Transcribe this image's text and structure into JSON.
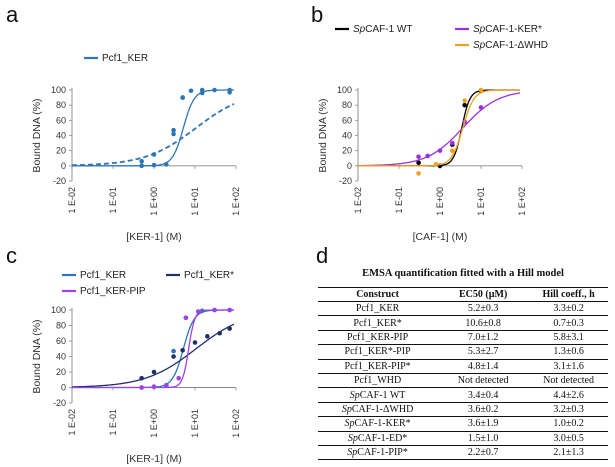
{
  "panels": {
    "a": "a",
    "b": "b",
    "c": "c",
    "d": "d"
  },
  "chart_data": [
    {
      "id": "a",
      "type": "scatter",
      "xscale": "log",
      "xlim_exp": [
        -2,
        2
      ],
      "ylim": [
        -20,
        100
      ],
      "yticks": [
        -20,
        0,
        20,
        40,
        60,
        80,
        100
      ],
      "xtick_labels": [
        "1 E-02",
        "1 E-01",
        "1 E+00",
        "1 E+01",
        "1 E+02"
      ],
      "xlabel": "[KER-1] (M)",
      "ylabel": "Bound DNA (%)",
      "legend": [
        "Pcf1_KER"
      ],
      "series": [
        {
          "name": "Pcf1_KER",
          "color": "#2e75b6",
          "fit": {
            "ec50": 5.2,
            "h": 3.3
          },
          "points": [
            [
              0.5,
              0
            ],
            [
              1,
              1
            ],
            [
              2,
              2
            ],
            [
              3,
              47
            ],
            [
              5,
              90
            ],
            [
              8,
              99
            ],
            [
              15,
              100
            ],
            [
              30,
              100
            ],
            [
              70,
              100
            ]
          ]
        },
        {
          "name": "",
          "color": "#2e75b6",
          "dashed": true,
          "fit": {
            "ec50": 10.6,
            "h": 0.7
          },
          "points": [
            [
              0.5,
              6
            ],
            [
              1,
              15
            ],
            [
              3,
              42
            ],
            [
              5,
              90
            ],
            [
              15,
              96
            ],
            [
              70,
              97
            ]
          ]
        }
      ]
    },
    {
      "id": "b",
      "type": "scatter",
      "xscale": "log",
      "xlim_exp": [
        -2,
        2
      ],
      "ylim": [
        -20,
        100
      ],
      "yticks": [
        -20,
        0,
        20,
        40,
        60,
        80,
        100
      ],
      "xtick_labels": [
        "1 E-02",
        "1 E-01",
        "1 E+00",
        "1 E+01",
        "1 E+02"
      ],
      "xlabel": "[CAF-1] (M)",
      "ylabel": "Bound DNA (%)",
      "legend": [
        "SpCAF-1 WT",
        "SpCAF-1-KER*",
        "SpCAF-1-ΔWHD"
      ],
      "series": [
        {
          "name": "SpCAF-1 WT",
          "color": "#000000",
          "fit": {
            "ec50": 3.4,
            "h": 4.4
          },
          "points": [
            [
              0.3,
              4
            ],
            [
              1,
              0
            ],
            [
              2,
              28
            ],
            [
              4,
              80
            ],
            [
              10,
              99
            ]
          ]
        },
        {
          "name": "SpCAF-1-KER*",
          "color": "#9b30e0",
          "fit": {
            "ec50": 3.6,
            "h": 1.0
          },
          "points": [
            [
              0.3,
              12
            ],
            [
              0.5,
              13
            ],
            [
              1,
              20
            ],
            [
              2,
              30
            ],
            [
              4,
              58
            ],
            [
              10,
              77
            ]
          ]
        },
        {
          "name": "SpCAF-1-ΔWHD",
          "color": "#f0a020",
          "fit": {
            "ec50": 3.6,
            "h": 3.2
          },
          "points": [
            [
              0.3,
              -10
            ],
            [
              0.8,
              2
            ],
            [
              2,
              20
            ],
            [
              4,
              86
            ],
            [
              10,
              100
            ]
          ]
        }
      ]
    },
    {
      "id": "c",
      "type": "scatter",
      "xscale": "log",
      "xlim_exp": [
        -2,
        2
      ],
      "ylim": [
        -20,
        100
      ],
      "yticks": [
        -20,
        0,
        20,
        40,
        60,
        80,
        100
      ],
      "xtick_labels": [
        "1 E-02",
        "1 E-01",
        "1 E+00",
        "1 E+01",
        "1 E+02"
      ],
      "xlabel": "[KER-1] (M)",
      "ylabel": "Bound DNA (%)",
      "legend": [
        "Pcf1_KER",
        "Pcf1_KER*",
        "Pcf1_KER-PIP"
      ],
      "series": [
        {
          "name": "Pcf1_KER",
          "color": "#2e75b6",
          "fit": {
            "ec50": 5.2,
            "h": 3.3
          },
          "points": [
            [
              0.5,
              0
            ],
            [
              1,
              1
            ],
            [
              2,
              3
            ],
            [
              3,
              47
            ],
            [
              6,
              90
            ],
            [
              15,
              99
            ],
            [
              30,
              100
            ],
            [
              70,
              100
            ]
          ]
        },
        {
          "name": "Pcf1_KER*",
          "color": "#1f2f6b",
          "fit": {
            "ec50": 10.6,
            "h": 0.7
          },
          "points": [
            [
              0.5,
              12
            ],
            [
              1,
              20
            ],
            [
              3,
              40
            ],
            [
              5,
              48
            ],
            [
              10,
              58
            ],
            [
              20,
              66
            ],
            [
              40,
              70
            ],
            [
              70,
              76
            ]
          ]
        },
        {
          "name": "Pcf1_KER-PIP",
          "color": "#a040e8",
          "fit": {
            "ec50": 7.0,
            "h": 5.8
          },
          "points": [
            [
              0.5,
              0
            ],
            [
              1,
              1
            ],
            [
              2,
              2
            ],
            [
              4,
              12
            ],
            [
              6,
              90
            ],
            [
              12,
              98
            ],
            [
              30,
              100
            ],
            [
              70,
              100
            ]
          ]
        }
      ]
    }
  ],
  "table": {
    "title": "EMSA quantification fitted with a Hill model",
    "headers": [
      "Construct",
      "EC50 (µM)",
      "Hill coeff., h"
    ],
    "rows": [
      {
        "construct": "Pcf1_KER",
        "ec50": "5.2±0.3",
        "h": "3.3±0.2"
      },
      {
        "construct": "Pcf1_KER*",
        "ec50": "10.6±0.8",
        "h": "0.7±0.3"
      },
      {
        "construct": "Pcf1_KER-PIP",
        "ec50": "7.0±1.2",
        "h": "5.8±3.1"
      },
      {
        "construct": "Pcf1_KER*-PIP",
        "ec50": "5.3±2.7",
        "h": "1.3±0.6"
      },
      {
        "construct": "Pcf1_KER-PIP*",
        "ec50": "4.8±1.4",
        "h": "3.1±1.6"
      },
      {
        "construct": "Pcf1_WHD",
        "ec50": "Not detected",
        "h": "Not detected"
      },
      {
        "construct": "SpCAF-1 WT",
        "ec50": "3.4±0.4",
        "h": "4.4±2.6"
      },
      {
        "construct": "SpCAF-1-ΔWHD",
        "ec50": "3.6±0.2",
        "h": "3.2±0.3"
      },
      {
        "construct": "SpCAF-1-KER*",
        "ec50": "3.6±1.9",
        "h": "1.0±0.2"
      },
      {
        "construct": "SpCAF-1-ED*",
        "ec50": "1.5±1.0",
        "h": "3.0±0.5"
      },
      {
        "construct": "SpCAF-1-PIP*",
        "ec50": "2.2±0.7",
        "h": "2.1±1.3"
      }
    ]
  }
}
